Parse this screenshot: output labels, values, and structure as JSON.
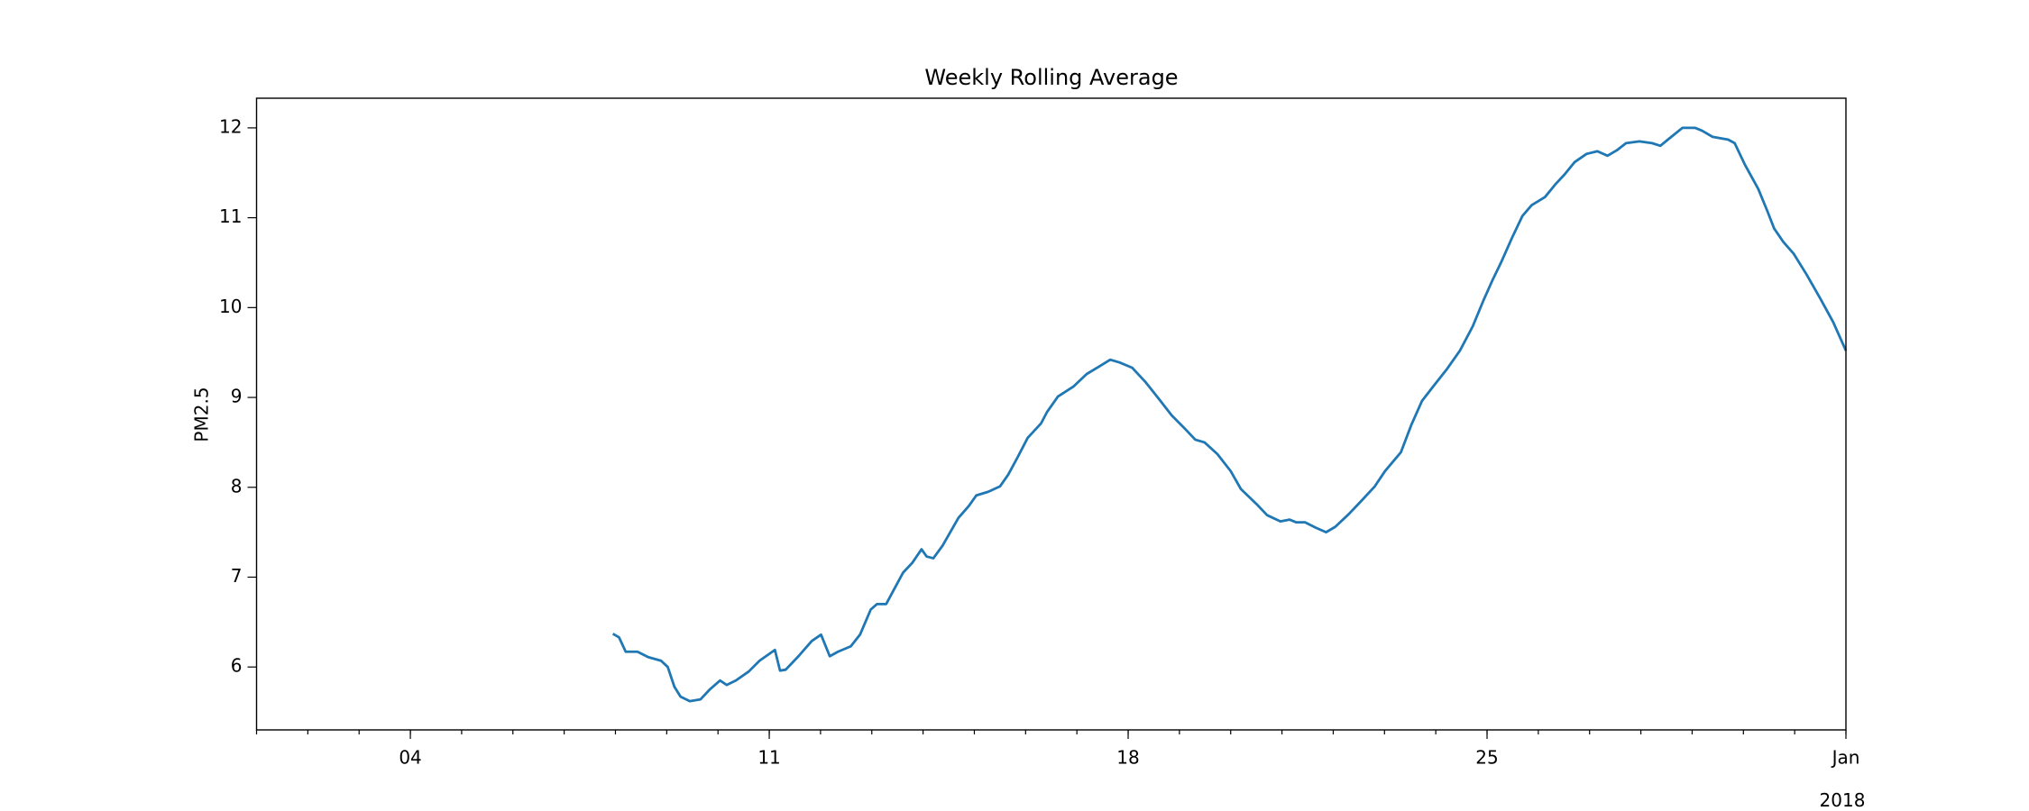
{
  "chart_data": {
    "type": "line",
    "title": "Weekly Rolling Average",
    "y_label": "PM2.5",
    "x_year_label": "2018",
    "xlim": [
      1,
      32
    ],
    "ylim": [
      5.3,
      12.33
    ],
    "xticks": [
      {
        "value": 4,
        "label": "04"
      },
      11,
      18,
      25,
      {
        "value": 32,
        "label": "Jan"
      }
    ],
    "yticks": [
      6,
      7,
      8,
      9,
      10,
      11,
      12
    ],
    "series": [
      {
        "color": "#1f77b4",
        "x": [
          7.95,
          8.07,
          8.2,
          8.43,
          8.64,
          8.89,
          9.02,
          9.15,
          9.27,
          9.45,
          9.66,
          9.84,
          10.04,
          10.17,
          10.35,
          10.6,
          10.81,
          11.11,
          11.21,
          11.32,
          11.57,
          11.83,
          12.01,
          12.18,
          12.34,
          12.59,
          12.77,
          12.98,
          13.1,
          13.28,
          13.44,
          13.61,
          13.79,
          13.97,
          14.07,
          14.2,
          14.38,
          14.69,
          14.89,
          15.04,
          15.27,
          15.5,
          15.66,
          15.84,
          16.04,
          16.3,
          16.42,
          16.63,
          16.93,
          17.19,
          17.45,
          17.65,
          17.83,
          18.08,
          18.34,
          18.59,
          18.85,
          19.11,
          19.31,
          19.49,
          19.74,
          20.0,
          20.2,
          20.51,
          20.71,
          20.97,
          21.15,
          21.28,
          21.45,
          21.66,
          21.86,
          22.04,
          22.3,
          22.55,
          22.81,
          23.01,
          23.32,
          23.52,
          23.73,
          23.96,
          24.21,
          24.47,
          24.72,
          24.93,
          25.11,
          25.28,
          25.49,
          25.69,
          25.87,
          26.13,
          26.33,
          26.51,
          26.71,
          26.94,
          27.15,
          27.35,
          27.53,
          27.71,
          27.97,
          28.22,
          28.38,
          28.55,
          28.81,
          29.06,
          29.19,
          29.4,
          29.7,
          29.83,
          30.03,
          30.29,
          30.47,
          30.6,
          30.78,
          30.98,
          31.23,
          31.49,
          31.75,
          32.0
        ],
        "values": [
          6.37,
          6.33,
          6.17,
          6.17,
          6.11,
          6.07,
          6.0,
          5.78,
          5.67,
          5.62,
          5.64,
          5.75,
          5.85,
          5.8,
          5.85,
          5.95,
          6.07,
          6.19,
          5.96,
          5.97,
          6.12,
          6.29,
          6.36,
          6.12,
          6.17,
          6.23,
          6.36,
          6.64,
          6.7,
          6.7,
          6.87,
          7.05,
          7.16,
          7.31,
          7.23,
          7.21,
          7.35,
          7.66,
          7.79,
          7.91,
          7.95,
          8.01,
          8.14,
          8.33,
          8.55,
          8.71,
          8.84,
          9.01,
          9.12,
          9.26,
          9.35,
          9.42,
          9.39,
          9.33,
          9.17,
          8.99,
          8.8,
          8.65,
          8.53,
          8.5,
          8.37,
          8.18,
          7.98,
          7.81,
          7.69,
          7.62,
          7.64,
          7.61,
          7.61,
          7.55,
          7.5,
          7.56,
          7.7,
          7.85,
          8.01,
          8.18,
          8.39,
          8.69,
          8.96,
          9.13,
          9.31,
          9.52,
          9.79,
          10.08,
          10.31,
          10.51,
          10.78,
          11.02,
          11.14,
          11.23,
          11.37,
          11.48,
          11.62,
          11.71,
          11.74,
          11.69,
          11.75,
          11.83,
          11.85,
          11.83,
          11.8,
          11.88,
          12.0,
          12.0,
          11.97,
          11.9,
          11.87,
          11.83,
          11.59,
          11.32,
          11.07,
          10.88,
          10.73,
          10.6,
          10.37,
          10.11,
          9.84,
          9.52
        ]
      }
    ]
  }
}
